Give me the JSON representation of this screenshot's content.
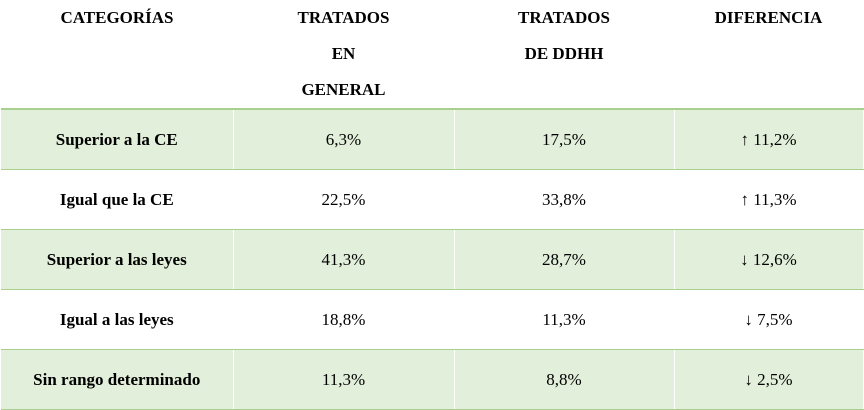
{
  "table": {
    "header": [
      "CATEGORÍAS",
      "TRATADOS EN GENERAL",
      "TRATADOS DE DDHH",
      "DIFERENCIA"
    ],
    "rows": [
      [
        "Superior a la CE",
        "6,3%",
        "17,5%",
        "↑ 11,2%"
      ],
      [
        "Igual que la CE",
        "22,5%",
        "33,8%",
        "↑ 11,3%"
      ],
      [
        "Superior a las leyes",
        "41,3%",
        "28,7%",
        "↓ 12,6%"
      ],
      [
        "Igual a las leyes",
        "18,8%",
        "11,3%",
        "↓ 7,5%"
      ],
      [
        "Sin rango determinado",
        "11,3%",
        "8,8%",
        "↓ 2,5%"
      ]
    ]
  }
}
